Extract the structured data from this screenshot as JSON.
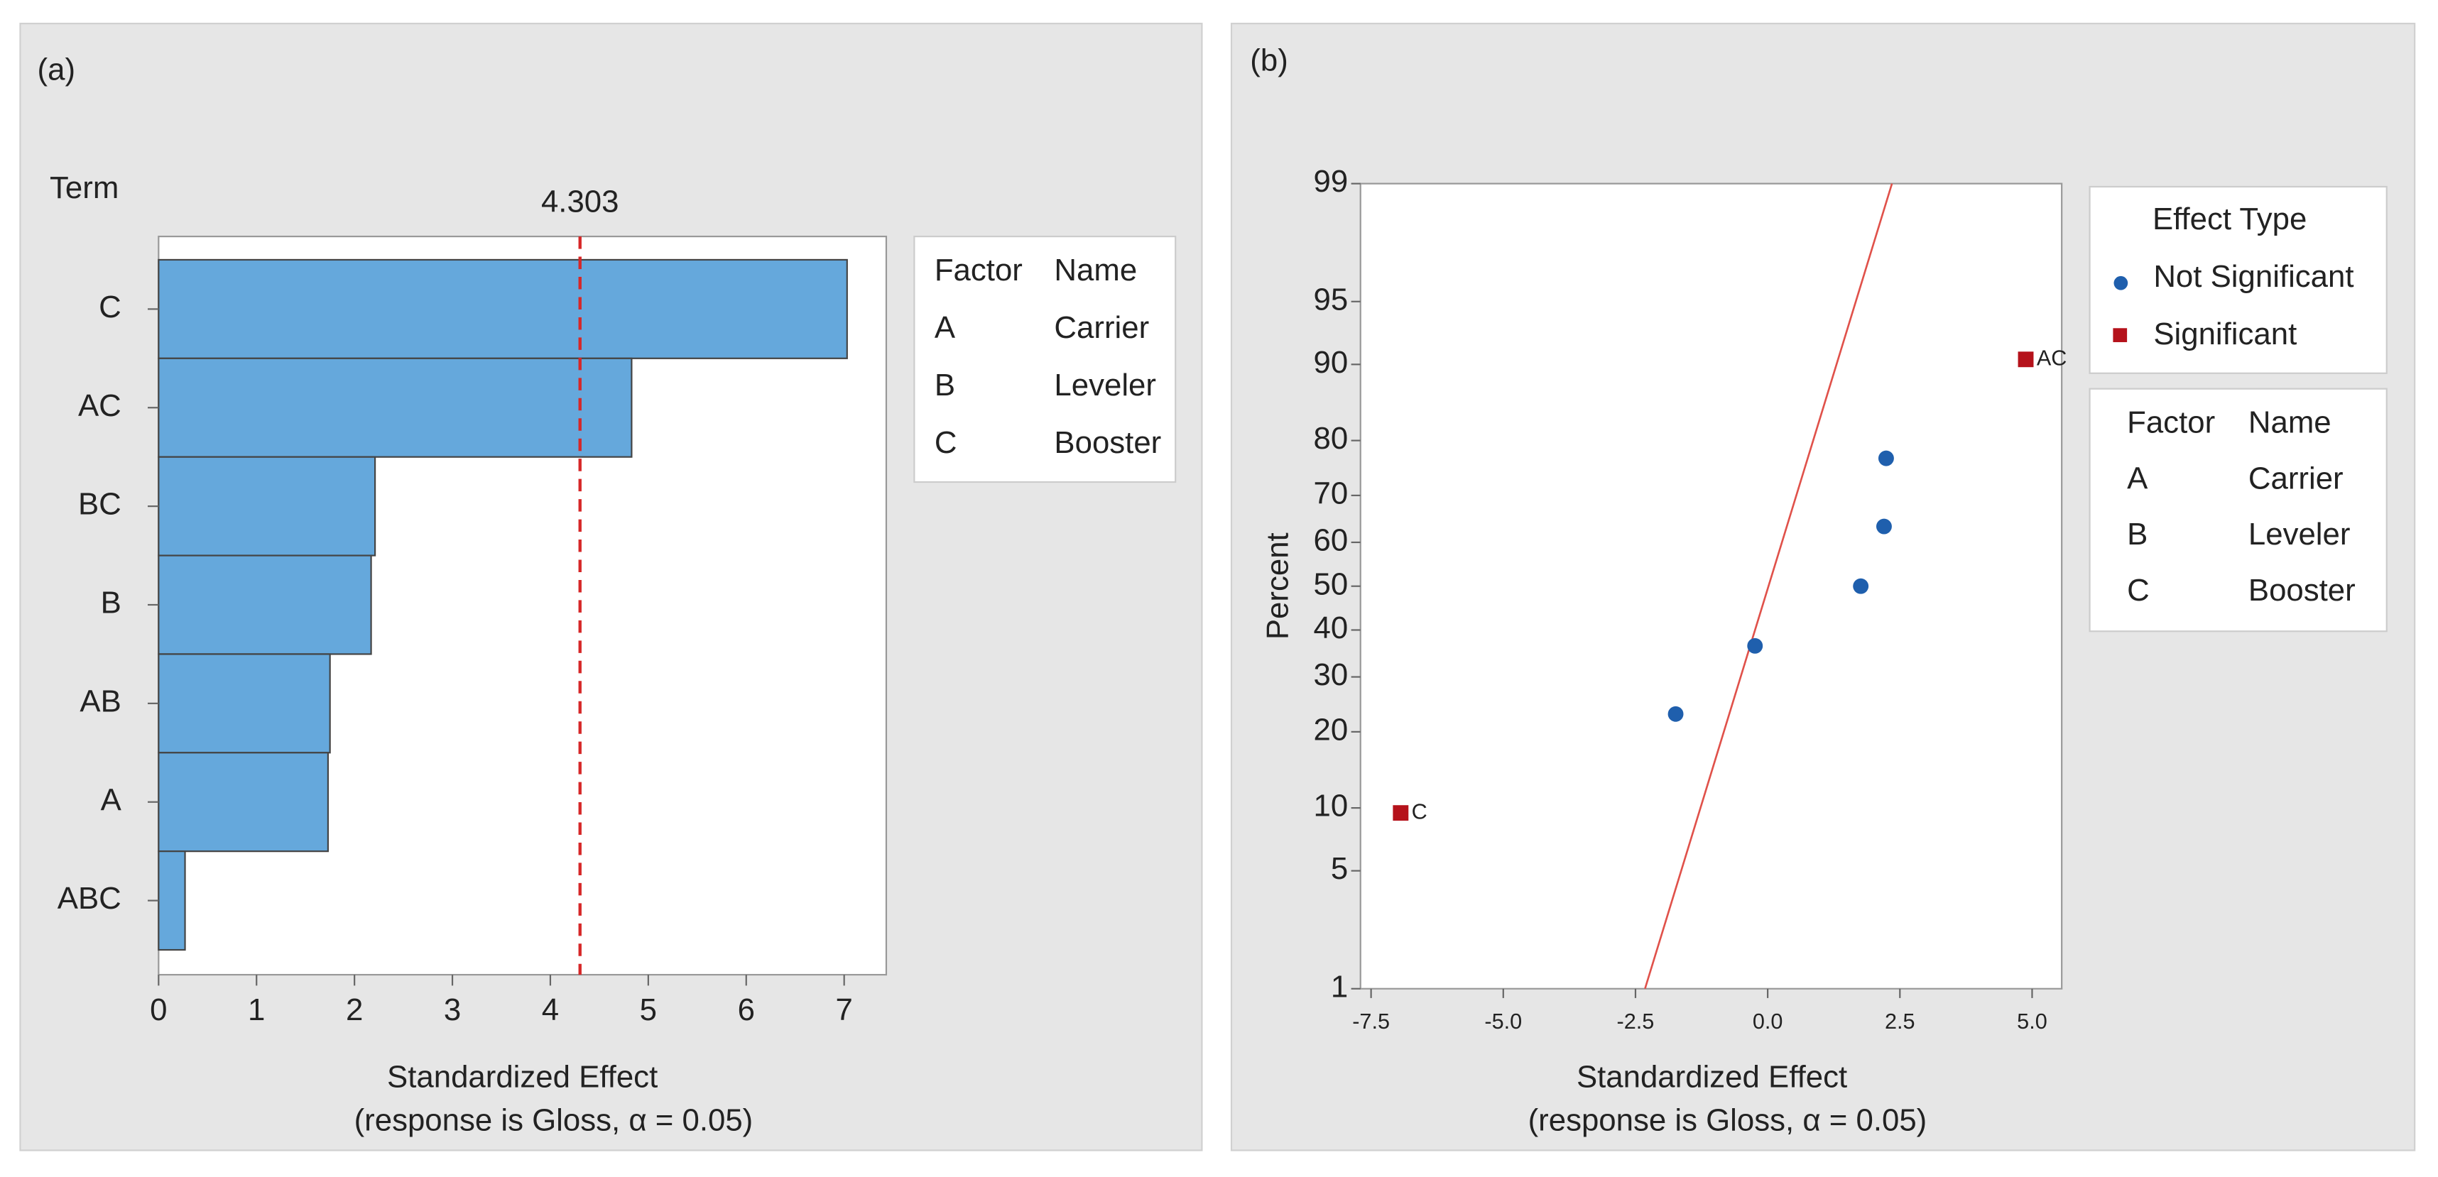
{
  "chart_data": [
    {
      "type": "bar",
      "orientation": "horizontal",
      "panel_label": "(a)",
      "y_label": "Term",
      "x_label": "Standardized Effect",
      "x_sublabel": "(response is Gloss, α = 0.05)",
      "categories": [
        "C",
        "AC",
        "BC",
        "B",
        "AB",
        "A",
        "ABC"
      ],
      "values": [
        7.03,
        4.83,
        2.21,
        2.17,
        1.75,
        1.73,
        0.27
      ],
      "color": "#65a8dc",
      "xlim": [
        0,
        7.43
      ],
      "xticks": [
        0,
        1,
        2,
        3,
        4,
        5,
        6,
        7
      ],
      "reference_line": 4.303,
      "reference_color": "#d62728",
      "factors": {
        "headers": [
          "Factor",
          "Name"
        ],
        "rows": [
          [
            "A",
            "Carrier"
          ],
          [
            "B",
            "Leveler"
          ],
          [
            "C",
            "Booster"
          ]
        ]
      }
    },
    {
      "type": "scatter",
      "panel_label": "(b)",
      "y_label": "Percent",
      "x_label": "Standardized Effect",
      "x_sublabel": "(response is Gloss, α = 0.05)",
      "yscale": "probability",
      "xlim": [
        -7.7,
        5.56
      ],
      "ylim": [
        1,
        99
      ],
      "xticks": [
        -7.5,
        {
          "value": -5,
          "label": "-5.0"
        },
        -2.5,
        {
          "value": 0,
          "label": "0.0"
        },
        2.5,
        {
          "value": 5,
          "label": "5.0"
        }
      ],
      "yticks": [
        1,
        5,
        10,
        20,
        30,
        40,
        50,
        60,
        70,
        80,
        90,
        95,
        99
      ],
      "legend_title": "Effect Type",
      "series": [
        {
          "name": "Not Significant",
          "color": "#1f5fad",
          "marker": "circle",
          "x": [
            -1.74,
            -0.24,
            1.76,
            2.2,
            2.24
          ],
          "values": [
            23,
            36.5,
            50,
            63.5,
            77
          ]
        },
        {
          "name": "Significant",
          "color": "#b5121b",
          "marker": "square",
          "x": [
            -6.94,
            4.88
          ],
          "values": [
            9.5,
            90.5
          ],
          "labels": [
            "C",
            "AC"
          ]
        }
      ],
      "fit_line": {
        "x": [
          -2.32,
          2.35
        ],
        "y": [
          1,
          99
        ],
        "color": "#e0514a"
      },
      "factors": {
        "headers": [
          "Factor",
          "Name"
        ],
        "rows": [
          [
            "A",
            "Carrier"
          ],
          [
            "B",
            "Leveler"
          ],
          [
            "C",
            "Booster"
          ]
        ]
      }
    }
  ]
}
